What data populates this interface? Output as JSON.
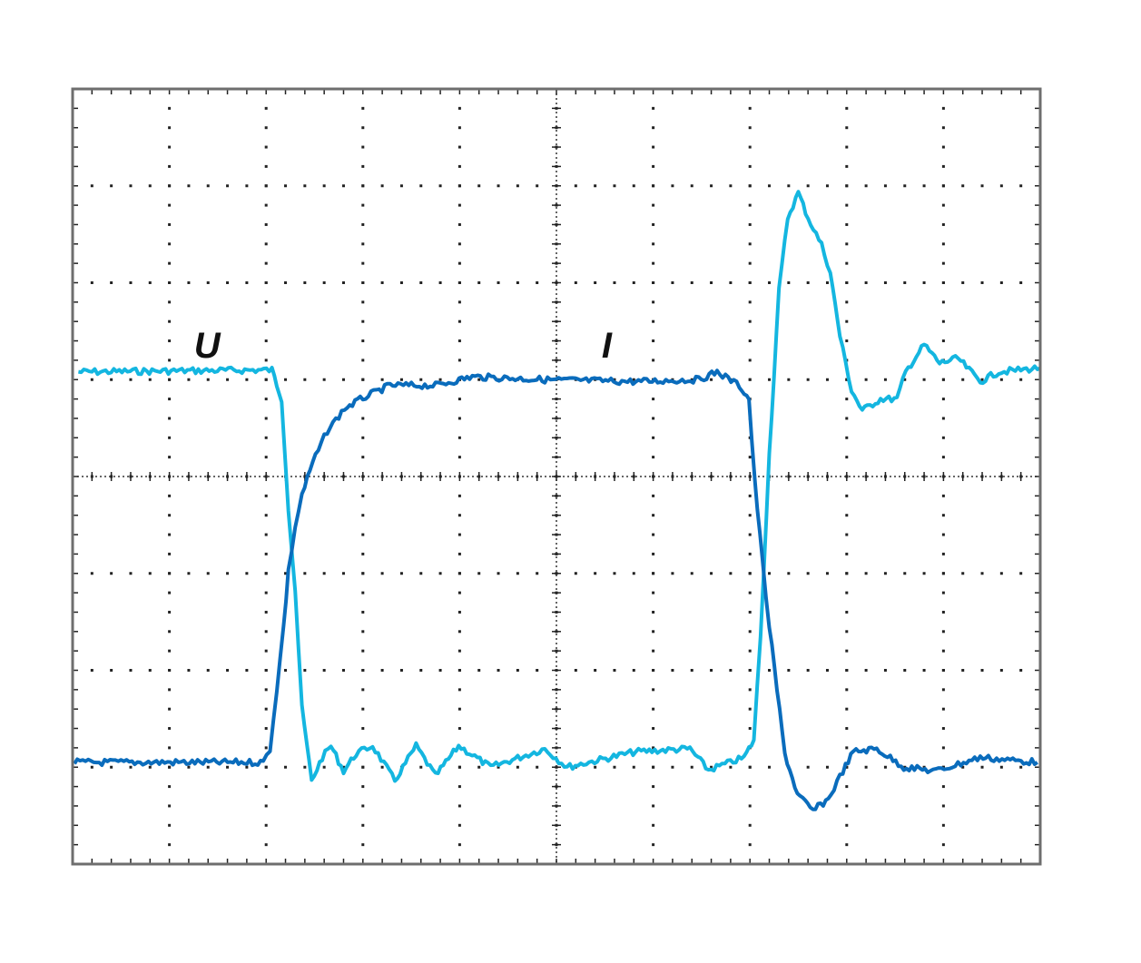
{
  "chart_data": {
    "type": "line",
    "title": "",
    "xlabel": "",
    "ylabel": "",
    "units": "divisions",
    "xlim": [
      0,
      10
    ],
    "ylim": [
      0,
      8
    ],
    "grid": true,
    "grid_style": "dotted oscilloscope graticule",
    "legend": "none",
    "annotations": [
      {
        "text": "U",
        "x": 1.39,
        "y": 5.36,
        "series": "U"
      },
      {
        "text": "I",
        "x": 5.52,
        "y": 5.36,
        "series": "I"
      }
    ],
    "series": [
      {
        "name": "U",
        "color": "#14b6e0",
        "points": [
          [
            0.06,
            5.08
          ],
          [
            2.06,
            5.1
          ],
          [
            2.16,
            4.8
          ],
          [
            2.23,
            3.67
          ],
          [
            2.3,
            2.83
          ],
          [
            2.37,
            1.61
          ],
          [
            2.47,
            0.86
          ],
          [
            2.58,
            1.1
          ],
          [
            2.67,
            1.22
          ],
          [
            2.8,
            0.96
          ],
          [
            2.93,
            1.14
          ],
          [
            3.1,
            1.22
          ],
          [
            3.33,
            0.86
          ],
          [
            3.55,
            1.22
          ],
          [
            3.75,
            0.91
          ],
          [
            3.99,
            1.22
          ],
          [
            4.32,
            1.0
          ],
          [
            4.88,
            1.19
          ],
          [
            5.11,
            1.0
          ],
          [
            5.82,
            1.16
          ],
          [
            6.38,
            1.19
          ],
          [
            6.57,
            0.97
          ],
          [
            6.94,
            1.1
          ],
          [
            7.04,
            1.28
          ],
          [
            7.11,
            2.36
          ],
          [
            7.2,
            4.23
          ],
          [
            7.3,
            5.92
          ],
          [
            7.39,
            6.67
          ],
          [
            7.5,
            6.93
          ],
          [
            7.6,
            6.67
          ],
          [
            7.74,
            6.39
          ],
          [
            7.83,
            6.11
          ],
          [
            7.93,
            5.45
          ],
          [
            8.05,
            4.89
          ],
          [
            8.16,
            4.68
          ],
          [
            8.35,
            4.8
          ],
          [
            8.52,
            4.8
          ],
          [
            8.61,
            5.08
          ],
          [
            8.8,
            5.36
          ],
          [
            8.96,
            5.17
          ],
          [
            9.15,
            5.22
          ],
          [
            9.38,
            4.98
          ],
          [
            9.57,
            5.08
          ],
          [
            10.0,
            5.12
          ]
        ]
      },
      {
        "name": "I",
        "color": "#0a6cbc",
        "points": [
          [
            0.02,
            1.05
          ],
          [
            1.97,
            1.05
          ],
          [
            2.04,
            1.19
          ],
          [
            2.11,
            1.8
          ],
          [
            2.18,
            2.45
          ],
          [
            2.23,
            3.02
          ],
          [
            2.3,
            3.48
          ],
          [
            2.37,
            3.81
          ],
          [
            2.48,
            4.14
          ],
          [
            2.63,
            4.47
          ],
          [
            2.81,
            4.7
          ],
          [
            3.0,
            4.81
          ],
          [
            3.28,
            4.94
          ],
          [
            3.75,
            4.94
          ],
          [
            4.13,
            5.03
          ],
          [
            4.88,
            5.0
          ],
          [
            5.82,
            4.98
          ],
          [
            6.47,
            5.0
          ],
          [
            6.66,
            5.08
          ],
          [
            6.89,
            4.94
          ],
          [
            6.99,
            4.8
          ],
          [
            7.05,
            3.95
          ],
          [
            7.13,
            3.11
          ],
          [
            7.2,
            2.45
          ],
          [
            7.28,
            1.8
          ],
          [
            7.36,
            1.14
          ],
          [
            7.49,
            0.72
          ],
          [
            7.65,
            0.55
          ],
          [
            7.81,
            0.67
          ],
          [
            7.96,
            0.96
          ],
          [
            8.07,
            1.16
          ],
          [
            8.31,
            1.19
          ],
          [
            8.59,
            1.0
          ],
          [
            8.92,
            0.96
          ],
          [
            9.38,
            1.1
          ],
          [
            9.97,
            1.05
          ]
        ]
      }
    ]
  }
}
